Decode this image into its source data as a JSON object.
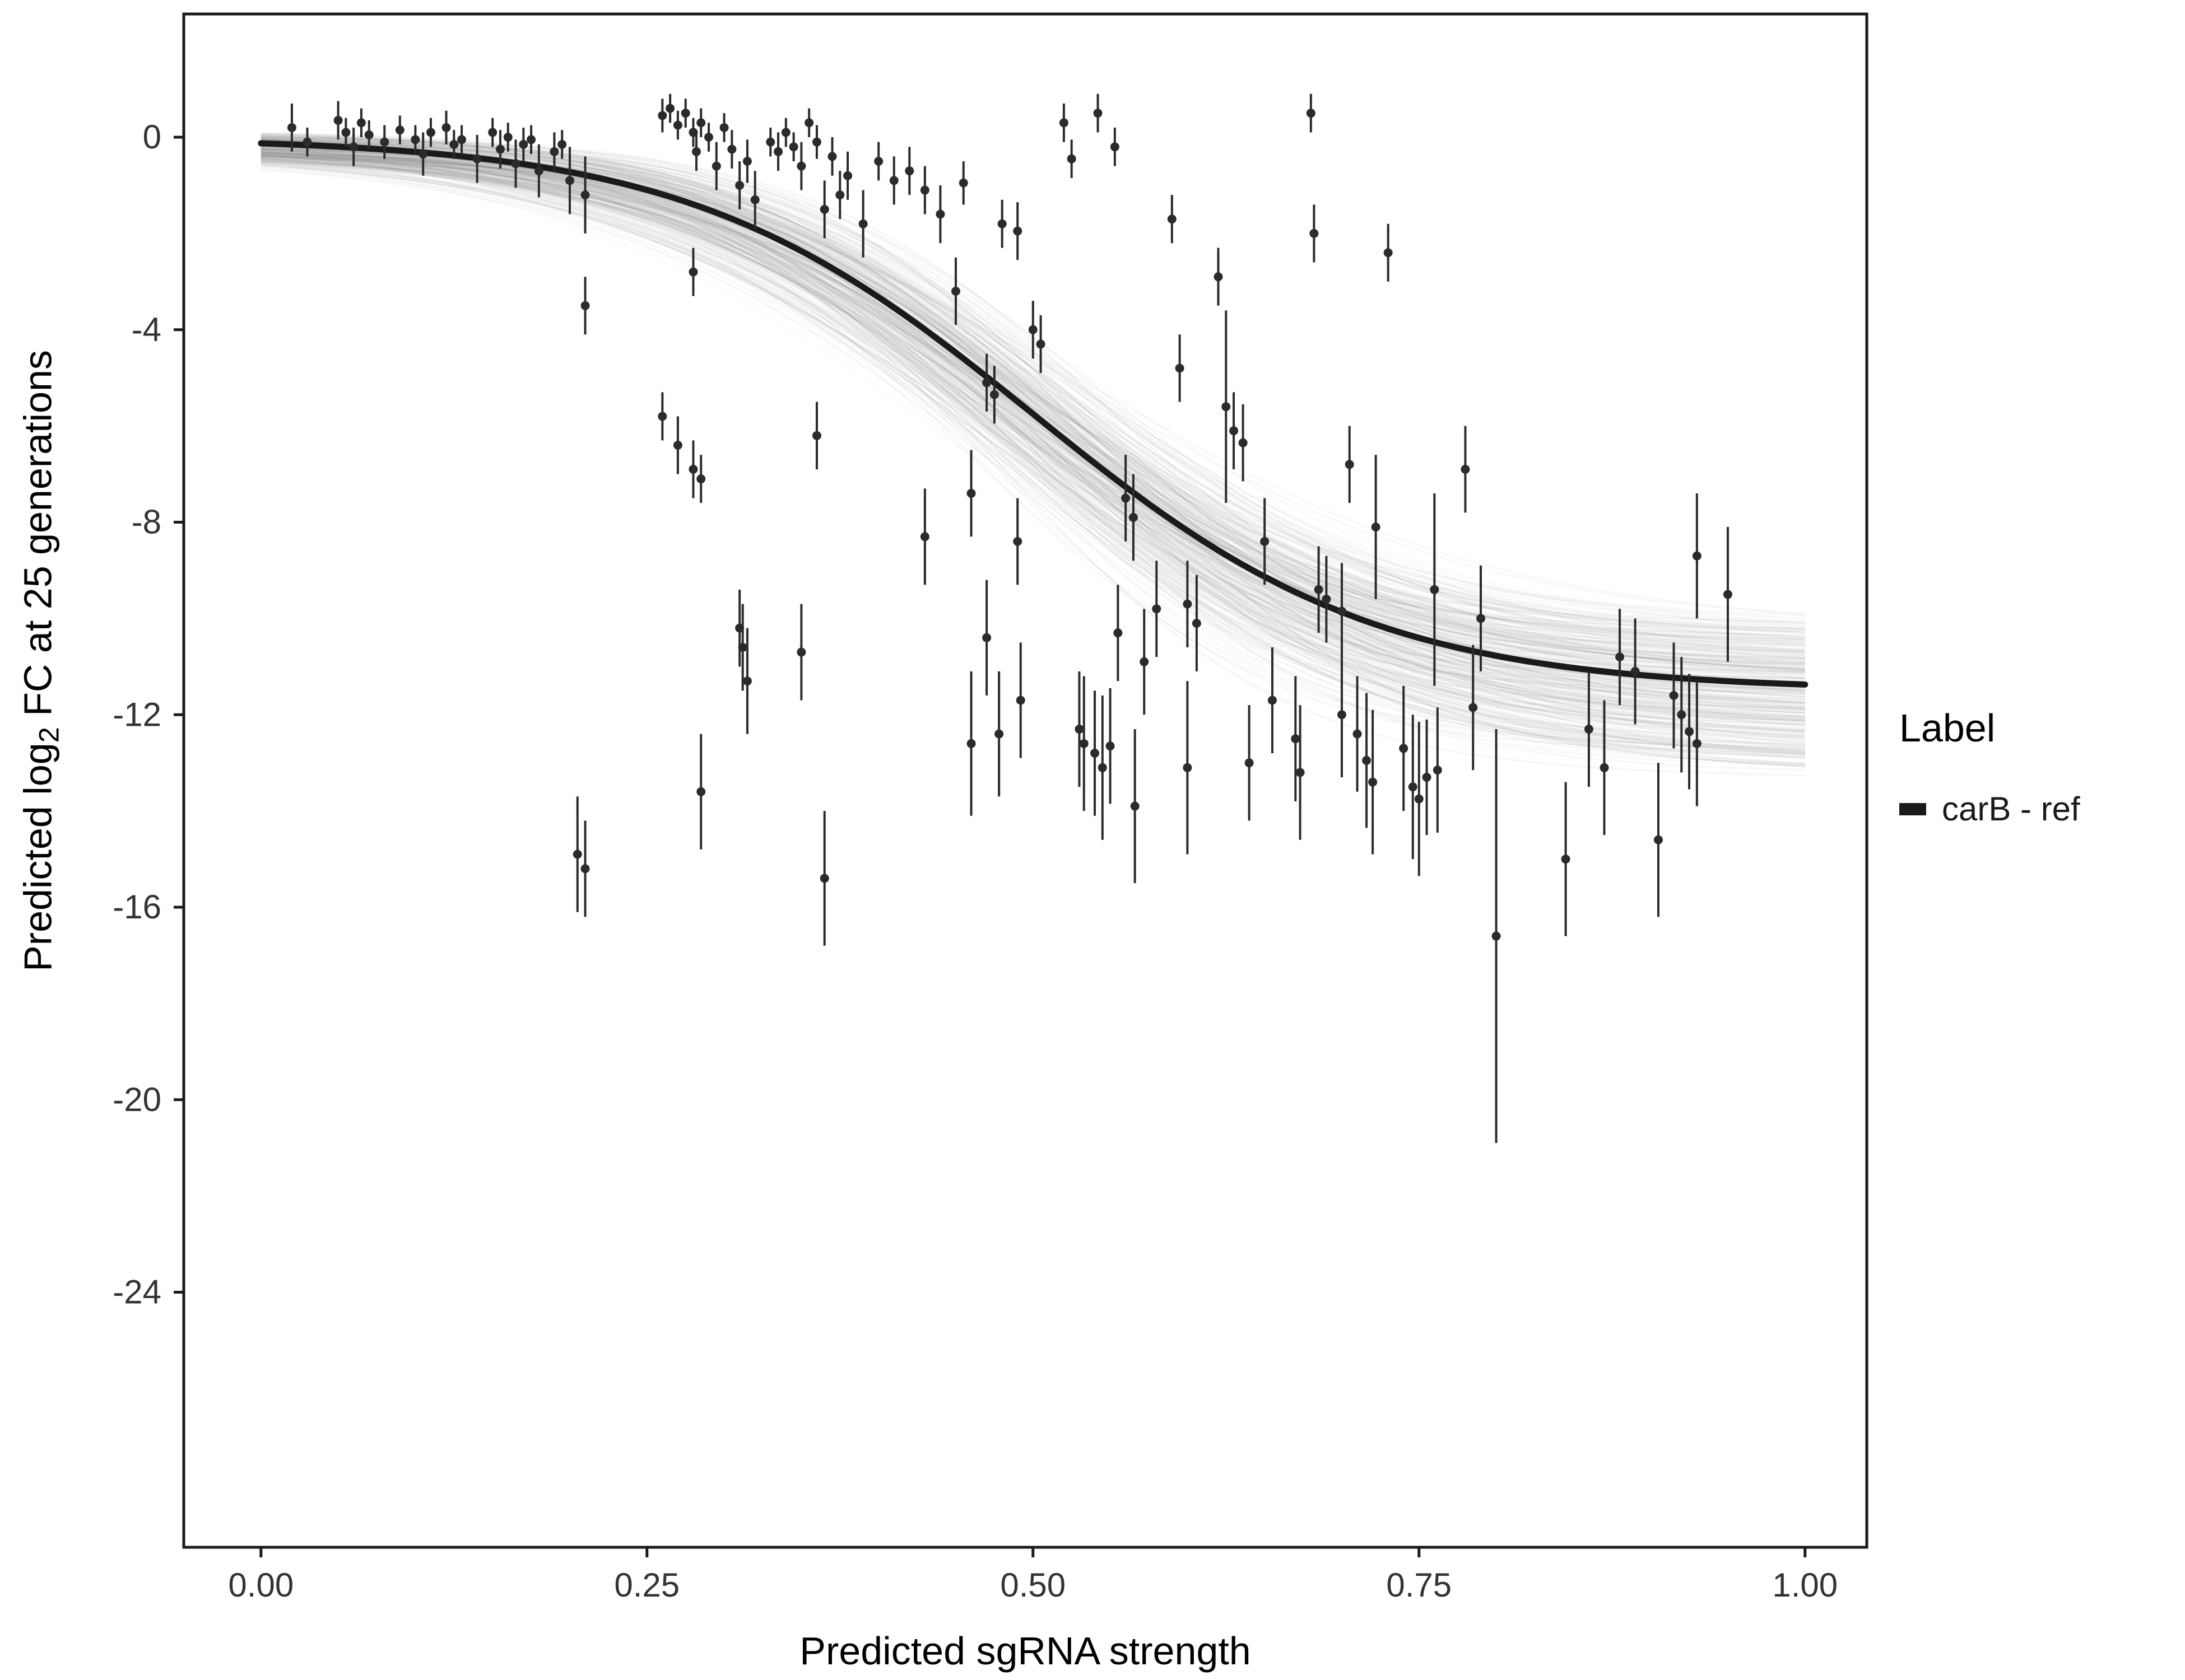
{
  "chart_data": {
    "type": "scatter",
    "title": "",
    "xlabel": "Predicted sgRNA strength",
    "ylabel": "Predicted log2 FC at 25 generations",
    "ylabel_parts": {
      "prefix": "Predicted log",
      "sub": "2",
      "suffix": " FC at 25 generations"
    },
    "xlim": [
      -0.05,
      1.04
    ],
    "ylim": [
      -29.3,
      2.56
    ],
    "x_ticks": [
      0,
      0.25,
      0.5,
      0.75,
      1.0
    ],
    "x_tick_labels": [
      "0.00",
      "0.25",
      "0.50",
      "0.75",
      "1.00"
    ],
    "y_ticks": [
      0,
      -4,
      -8,
      -12,
      -16,
      -20,
      -24
    ],
    "y_tick_labels": [
      "0",
      "-4",
      "-8",
      "-12",
      "-16",
      "-20",
      "-24"
    ],
    "grid": false,
    "legend_position": "right",
    "colors": {
      "point": "#2b2b2b",
      "curve": "#1a1a1a",
      "band": "#8c8c8c",
      "axis": "#1a1a1a",
      "tick_label": "#333333"
    },
    "curve": {
      "model": "logistic",
      "L": 11.5,
      "x0": 0.5,
      "k": 9.0,
      "width": 11
    },
    "uncertainty": {
      "n": 300,
      "L_range": [
        10.1,
        13.1
      ],
      "x0_range": [
        0.455,
        0.545
      ],
      "k_range": [
        7.2,
        10.8
      ],
      "offset_range": [
        -0.35,
        0.15
      ],
      "opacity_range": [
        0.03,
        0.09
      ],
      "width": 3,
      "seed": 42
    },
    "points": {
      "radius": 8,
      "errorbar_width": 4,
      "data": [
        [
          0.02,
          0.2,
          0.5
        ],
        [
          0.03,
          -0.1,
          0.3
        ],
        [
          0.05,
          0.35,
          0.4
        ],
        [
          0.055,
          0.1,
          0.3
        ],
        [
          0.06,
          -0.2,
          0.4
        ],
        [
          0.065,
          0.3,
          0.3
        ],
        [
          0.07,
          0.05,
          0.3
        ],
        [
          0.08,
          -0.1,
          0.35
        ],
        [
          0.09,
          0.15,
          0.3
        ],
        [
          0.1,
          -0.05,
          0.3
        ],
        [
          0.105,
          -0.35,
          0.45
        ],
        [
          0.11,
          0.1,
          0.3
        ],
        [
          0.12,
          0.2,
          0.35
        ],
        [
          0.125,
          -0.15,
          0.3
        ],
        [
          0.13,
          -0.05,
          0.3
        ],
        [
          0.14,
          -0.45,
          0.5
        ],
        [
          0.15,
          0.1,
          0.3
        ],
        [
          0.155,
          -0.25,
          0.4
        ],
        [
          0.16,
          0.0,
          0.3
        ],
        [
          0.165,
          -0.55,
          0.5
        ],
        [
          0.17,
          -0.15,
          0.35
        ],
        [
          0.175,
          -0.05,
          0.3
        ],
        [
          0.18,
          -0.7,
          0.55
        ],
        [
          0.19,
          -0.3,
          0.4
        ],
        [
          0.195,
          -0.15,
          0.3
        ],
        [
          0.2,
          -0.9,
          0.7
        ],
        [
          0.21,
          -1.2,
          0.8
        ],
        [
          0.205,
          -14.9,
          1.2
        ],
        [
          0.21,
          -15.2,
          1.0
        ],
        [
          0.21,
          -3.5,
          0.6
        ],
        [
          0.26,
          0.45,
          0.35
        ],
        [
          0.265,
          0.6,
          0.3
        ],
        [
          0.27,
          0.25,
          0.3
        ],
        [
          0.275,
          0.5,
          0.3
        ],
        [
          0.28,
          0.1,
          0.3
        ],
        [
          0.282,
          -0.3,
          0.4
        ],
        [
          0.285,
          0.3,
          0.3
        ],
        [
          0.29,
          0.0,
          0.3
        ],
        [
          0.295,
          -0.6,
          0.5
        ],
        [
          0.3,
          0.2,
          0.3
        ],
        [
          0.305,
          -0.25,
          0.4
        ],
        [
          0.31,
          -1.0,
          0.5
        ],
        [
          0.315,
          -0.5,
          0.45
        ],
        [
          0.32,
          -1.3,
          0.6
        ],
        [
          0.26,
          -5.8,
          0.5
        ],
        [
          0.27,
          -6.4,
          0.6
        ],
        [
          0.28,
          -6.9,
          0.6
        ],
        [
          0.285,
          -7.1,
          0.5
        ],
        [
          0.28,
          -2.8,
          0.5
        ],
        [
          0.285,
          -13.6,
          1.2
        ],
        [
          0.31,
          -10.2,
          0.8
        ],
        [
          0.312,
          -10.6,
          0.9
        ],
        [
          0.315,
          -11.3,
          1.1
        ],
        [
          0.35,
          -10.7,
          1.0
        ],
        [
          0.36,
          -6.2,
          0.7
        ],
        [
          0.365,
          -15.4,
          1.4
        ],
        [
          0.33,
          -0.1,
          0.3
        ],
        [
          0.335,
          -0.3,
          0.4
        ],
        [
          0.34,
          0.1,
          0.3
        ],
        [
          0.345,
          -0.2,
          0.3
        ],
        [
          0.35,
          -0.6,
          0.5
        ],
        [
          0.355,
          0.3,
          0.3
        ],
        [
          0.36,
          -0.1,
          0.35
        ],
        [
          0.365,
          -1.5,
          0.6
        ],
        [
          0.37,
          -0.4,
          0.4
        ],
        [
          0.375,
          -1.2,
          0.5
        ],
        [
          0.38,
          -0.8,
          0.5
        ],
        [
          0.39,
          -1.8,
          0.7
        ],
        [
          0.4,
          -0.5,
          0.4
        ],
        [
          0.41,
          -0.9,
          0.5
        ],
        [
          0.42,
          -0.7,
          0.5
        ],
        [
          0.43,
          -1.1,
          0.5
        ],
        [
          0.43,
          -8.3,
          1.0
        ],
        [
          0.44,
          -1.6,
          0.6
        ],
        [
          0.45,
          -3.2,
          0.7
        ],
        [
          0.455,
          -0.95,
          0.45
        ],
        [
          0.46,
          -7.4,
          0.9
        ],
        [
          0.46,
          -12.6,
          1.5
        ],
        [
          0.47,
          -5.1,
          0.6
        ],
        [
          0.475,
          -5.35,
          0.6
        ],
        [
          0.47,
          -10.4,
          1.2
        ],
        [
          0.478,
          -12.4,
          1.3
        ],
        [
          0.48,
          -1.8,
          0.5
        ],
        [
          0.49,
          -1.95,
          0.6
        ],
        [
          0.49,
          -8.4,
          0.9
        ],
        [
          0.492,
          -11.7,
          1.2
        ],
        [
          0.5,
          -4.0,
          0.6
        ],
        [
          0.505,
          -4.3,
          0.6
        ],
        [
          0.52,
          0.3,
          0.4
        ],
        [
          0.525,
          -0.45,
          0.4
        ],
        [
          0.53,
          -12.3,
          1.2
        ],
        [
          0.533,
          -12.6,
          1.4
        ],
        [
          0.54,
          -12.8,
          1.3
        ],
        [
          0.545,
          -13.1,
          1.5
        ],
        [
          0.55,
          -12.65,
          1.2
        ],
        [
          0.542,
          0.5,
          0.4
        ],
        [
          0.553,
          -0.2,
          0.4
        ],
        [
          0.555,
          -10.3,
          1.0
        ],
        [
          0.56,
          -7.5,
          0.9
        ],
        [
          0.565,
          -7.9,
          0.9
        ],
        [
          0.566,
          -13.9,
          1.6
        ],
        [
          0.572,
          -10.9,
          1.1
        ],
        [
          0.58,
          -9.8,
          1.0
        ],
        [
          0.59,
          -1.7,
          0.5
        ],
        [
          0.595,
          -4.8,
          0.7
        ],
        [
          0.6,
          -9.7,
          0.9
        ],
        [
          0.606,
          -10.1,
          1.0
        ],
        [
          0.6,
          -13.1,
          1.8
        ],
        [
          0.62,
          -2.9,
          0.6
        ],
        [
          0.625,
          -5.6,
          2.0
        ],
        [
          0.63,
          -6.1,
          0.8
        ],
        [
          0.636,
          -6.35,
          0.8
        ],
        [
          0.64,
          -13.0,
          1.2
        ],
        [
          0.65,
          -8.4,
          0.9
        ],
        [
          0.655,
          -11.7,
          1.1
        ],
        [
          0.67,
          -12.5,
          1.3
        ],
        [
          0.673,
          -13.2,
          1.4
        ],
        [
          0.68,
          0.5,
          0.4
        ],
        [
          0.682,
          -2.0,
          0.6
        ],
        [
          0.685,
          -9.4,
          0.9
        ],
        [
          0.69,
          -9.6,
          0.9
        ],
        [
          0.7,
          -9.85,
          1.0
        ],
        [
          0.7,
          -12.0,
          1.3
        ],
        [
          0.705,
          -6.8,
          0.8
        ],
        [
          0.71,
          -12.4,
          1.2
        ],
        [
          0.716,
          -12.95,
          1.4
        ],
        [
          0.72,
          -13.4,
          1.5
        ],
        [
          0.722,
          -8.1,
          1.5
        ],
        [
          0.73,
          -2.4,
          0.6
        ],
        [
          0.74,
          -12.7,
          1.3
        ],
        [
          0.746,
          -13.5,
          1.5
        ],
        [
          0.75,
          -13.75,
          1.6
        ],
        [
          0.755,
          -13.3,
          1.2
        ],
        [
          0.76,
          -9.4,
          2.0
        ],
        [
          0.762,
          -13.15,
          1.3
        ],
        [
          0.78,
          -6.9,
          0.9
        ],
        [
          0.785,
          -11.85,
          1.3
        ],
        [
          0.79,
          -10.0,
          1.1
        ],
        [
          0.8,
          -16.6,
          4.3
        ],
        [
          0.845,
          -15.0,
          1.6
        ],
        [
          0.86,
          -12.3,
          1.2
        ],
        [
          0.87,
          -13.1,
          1.4
        ],
        [
          0.88,
          -10.8,
          1.0
        ],
        [
          0.89,
          -11.1,
          1.1
        ],
        [
          0.905,
          -14.6,
          1.6
        ],
        [
          0.915,
          -11.6,
          1.1
        ],
        [
          0.92,
          -12.0,
          1.2
        ],
        [
          0.925,
          -12.35,
          1.2
        ],
        [
          0.93,
          -12.6,
          1.3
        ],
        [
          0.93,
          -8.7,
          1.3
        ],
        [
          0.95,
          -9.5,
          1.4
        ]
      ]
    },
    "legend": {
      "title": "Label",
      "entries": [
        {
          "label": "carB - ref",
          "color": "#1a1a1a"
        }
      ]
    }
  }
}
